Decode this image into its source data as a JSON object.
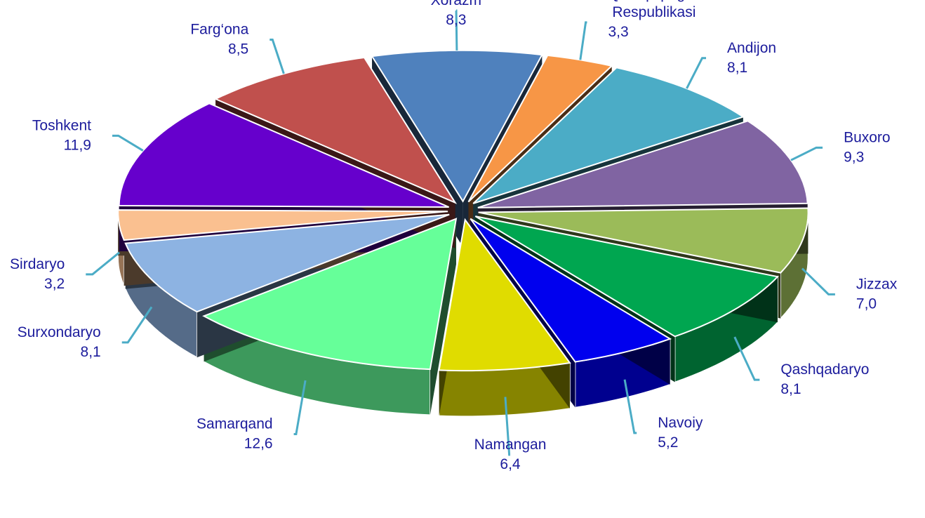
{
  "chart_data": {
    "type": "pie",
    "categories": [
      "Xorazm",
      "Qoraqalpog‘iston Respublikasi",
      "Andijon",
      "Buxoro",
      "Jizzax",
      "Qashqadaryo",
      "Navoiy",
      "Namangan",
      "Samarqand",
      "Surxondaryo",
      "Sirdaryo",
      "Toshkent",
      "Farg‘ona"
    ],
    "values": [
      8.3,
      3.3,
      8.1,
      9.3,
      7.0,
      8.1,
      5.2,
      6.4,
      12.6,
      8.1,
      3.2,
      11.9,
      8.5
    ],
    "value_labels": [
      "8,3",
      "3,3",
      "8,1",
      "9,3",
      "7,0",
      "8,1",
      "5,2",
      "6,4",
      "12,6",
      "8,1",
      "3,2",
      "11,9",
      "8,5"
    ],
    "colors": [
      "#4f81bd",
      "#f79646",
      "#4bacc6",
      "#8064a2",
      "#9bbb59",
      "#00a650",
      "#0000ee",
      "#e0dc00",
      "#66ff99",
      "#8db3e2",
      "#fac090",
      "#6600cc",
      "#c0504d"
    ]
  }
}
